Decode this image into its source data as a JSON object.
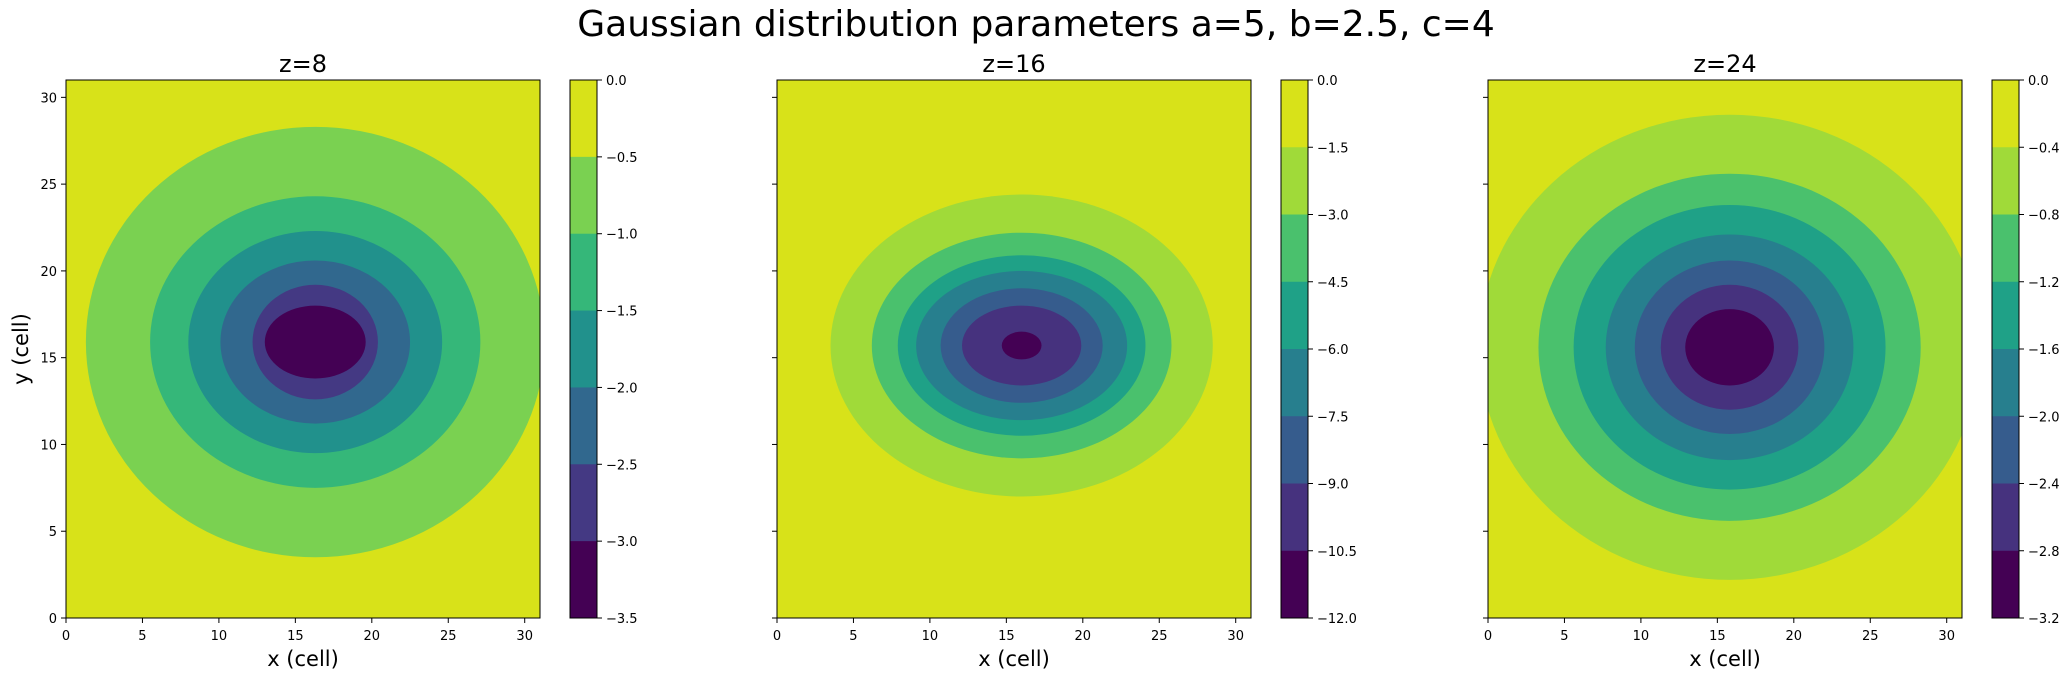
{
  "figure": {
    "suptitle": "Gaussian distribution parameters a=5, b=2.5, c=4"
  },
  "chart_data": [
    {
      "type": "contourf",
      "title": "z=8",
      "xlabel": "x (cell)",
      "ylabel": "y (cell)",
      "xlim": [
        0,
        31
      ],
      "ylim": [
        0,
        31
      ],
      "xticks": [
        0,
        5,
        10,
        15,
        20,
        25,
        30
      ],
      "yticks": [
        0,
        5,
        10,
        15,
        20,
        25,
        30
      ],
      "center": [
        16.3,
        15.9
      ],
      "levels": [
        -3.5,
        -3.0,
        -2.5,
        -2.0,
        -1.5,
        -1.0,
        -0.5,
        0.0
      ],
      "colorbar_ticks": [
        "0.0",
        "−0.5",
        "−1.0",
        "−1.5",
        "−2.0",
        "−2.5",
        "−3.0",
        "−3.5"
      ],
      "contour_radii": [
        {
          "level": -0.5,
          "rx": 15.0,
          "ry": 12.4
        },
        {
          "level": -1.0,
          "rx": 10.8,
          "ry": 8.4
        },
        {
          "level": -1.5,
          "rx": 8.3,
          "ry": 6.4
        },
        {
          "level": -2.0,
          "rx": 6.2,
          "ry": 4.7
        },
        {
          "level": -2.5,
          "rx": 4.1,
          "ry": 3.3
        },
        {
          "level": -3.0,
          "rx": 3.3,
          "ry": 2.1
        }
      ],
      "colors": [
        "#440154",
        "#443983",
        "#31688e",
        "#21918c",
        "#35b779",
        "#7ad151",
        "#d8e219"
      ]
    },
    {
      "type": "contourf",
      "title": "z=16",
      "xlabel": "x (cell)",
      "xlim": [
        0,
        31
      ],
      "ylim": [
        0,
        31
      ],
      "xticks": [
        0,
        5,
        10,
        15,
        20,
        25,
        30
      ],
      "yticks": [
        0,
        5,
        10,
        15,
        20,
        25,
        30
      ],
      "center": [
        16.0,
        15.7
      ],
      "levels": [
        -12.0,
        -10.5,
        -9.0,
        -7.5,
        -6.0,
        -4.5,
        -3.0,
        -1.5,
        0.0
      ],
      "colorbar_ticks": [
        "0.0",
        "−1.5",
        "−3.0",
        "−4.5",
        "−6.0",
        "−7.5",
        "−9.0",
        "−10.5",
        "−12.0"
      ],
      "contour_radii": [
        {
          "level": -1.5,
          "rx": 12.5,
          "ry": 8.7
        },
        {
          "level": -3.0,
          "rx": 9.8,
          "ry": 6.5
        },
        {
          "level": -4.5,
          "rx": 8.1,
          "ry": 5.2
        },
        {
          "level": -6.0,
          "rx": 6.9,
          "ry": 4.3
        },
        {
          "level": -7.5,
          "rx": 5.3,
          "ry": 3.3
        },
        {
          "level": -9.0,
          "rx": 3.9,
          "ry": 2.3
        },
        {
          "level": -10.5,
          "rx": 1.3,
          "ry": 0.8
        }
      ],
      "colors": [
        "#440154",
        "#46327e",
        "#365c8d",
        "#277f8e",
        "#1fa187",
        "#4ac16d",
        "#a0da39",
        "#d8e219"
      ]
    },
    {
      "type": "contourf",
      "title": "z=24",
      "xlabel": "x (cell)",
      "xlim": [
        0,
        31
      ],
      "ylim": [
        0,
        31
      ],
      "xticks": [
        0,
        5,
        10,
        15,
        20,
        25,
        30
      ],
      "yticks": [
        0,
        5,
        10,
        15,
        20,
        25,
        30
      ],
      "center": [
        15.8,
        15.6
      ],
      "levels": [
        -3.2,
        -2.8,
        -2.4,
        -2.0,
        -1.6,
        -1.2,
        -0.8,
        -0.4,
        0.0
      ],
      "colorbar_ticks": [
        "0.0",
        "−0.4",
        "−0.8",
        "−1.2",
        "−1.6",
        "−2.0",
        "−2.4",
        "−2.8",
        "−3.2"
      ],
      "contour_radii": [
        {
          "level": -0.4,
          "rx": 16.4,
          "ry": 13.4
        },
        {
          "level": -0.8,
          "rx": 12.5,
          "ry": 10.0
        },
        {
          "level": -1.2,
          "rx": 10.2,
          "ry": 8.2
        },
        {
          "level": -1.6,
          "rx": 8.1,
          "ry": 6.5
        },
        {
          "level": -2.0,
          "rx": 6.2,
          "ry": 5.0
        },
        {
          "level": -2.4,
          "rx": 4.5,
          "ry": 3.6
        },
        {
          "level": -2.8,
          "rx": 2.9,
          "ry": 2.2
        }
      ],
      "colors": [
        "#440154",
        "#46327e",
        "#365c8d",
        "#277f8e",
        "#1fa187",
        "#4ac16d",
        "#a0da39",
        "#d8e219"
      ]
    }
  ]
}
